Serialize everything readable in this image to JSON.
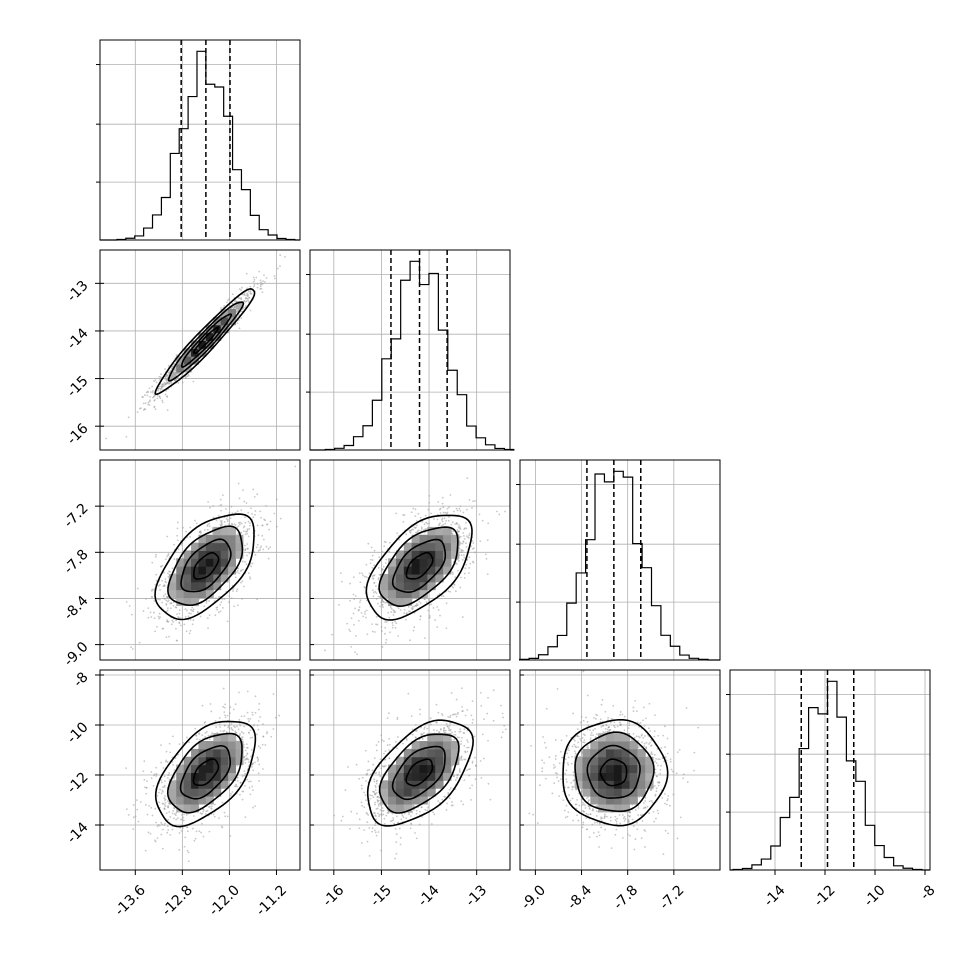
{
  "chart_data": {
    "type": "corner",
    "grid": true,
    "colors": {
      "line": "#000000",
      "grid": "#b0b0b0",
      "points": "#9a9a9a",
      "hist2d_dark": "#000000"
    },
    "parameters": [
      {
        "range": [
          -14.2,
          -10.8
        ],
        "ticks": [
          "-13.6",
          "-12.8",
          "-12.0",
          "-11.2"
        ],
        "tick_values": [
          -13.6,
          -12.8,
          -12.0,
          -11.2
        ],
        "mean": -12.4,
        "sd": 0.42,
        "quantiles": [
          -12.82,
          -12.4,
          -11.99
        ],
        "hist_peak_counts": [
          0.33,
          0.66,
          1.0
        ]
      },
      {
        "range": [
          -16.5,
          -12.3
        ],
        "ticks": [
          "-16",
          "-15",
          "-14",
          "-13"
        ],
        "tick_values": [
          -16,
          -15,
          -14,
          -13
        ],
        "mean": -14.2,
        "sd": 0.55,
        "quantiles": [
          -14.8,
          -14.2,
          -13.62
        ],
        "hist_peak_counts": [
          0.33,
          0.66,
          1.0
        ]
      },
      {
        "range": [
          -9.2,
          -6.6
        ],
        "ticks": [
          "-9.0",
          "-8.4",
          "-7.8",
          "-7.2"
        ],
        "tick_values": [
          -9.0,
          -8.4,
          -7.8,
          -7.2
        ],
        "mean": -7.98,
        "sd": 0.34,
        "quantiles": [
          -8.33,
          -7.98,
          -7.63
        ],
        "hist_peak_counts": [
          0.33,
          0.66,
          1.0
        ]
      },
      {
        "range": [
          -15.8,
          -7.8
        ],
        "ticks": [
          "-14",
          "-12",
          "-10",
          "-8"
        ],
        "tick_values": [
          -14,
          -12,
          -10,
          -8
        ],
        "mean": -11.9,
        "sd": 1.05,
        "quantiles": [
          -12.95,
          -11.9,
          -10.85
        ],
        "hist_peak_counts": [
          0.33,
          0.66,
          1.0
        ]
      }
    ],
    "correlations": [
      {
        "pair": [
          0,
          1
        ],
        "rho": 0.96
      },
      {
        "pair": [
          0,
          2
        ],
        "rho": 0.55
      },
      {
        "pair": [
          1,
          2
        ],
        "rho": 0.55
      },
      {
        "pair": [
          0,
          3
        ],
        "rho": 0.52
      },
      {
        "pair": [
          1,
          3
        ],
        "rho": 0.52
      },
      {
        "pair": [
          2,
          3
        ],
        "rho": 0.0
      }
    ],
    "contour_levels_sigma": [
      0.5,
      1.0,
      1.5,
      2.0
    ]
  }
}
